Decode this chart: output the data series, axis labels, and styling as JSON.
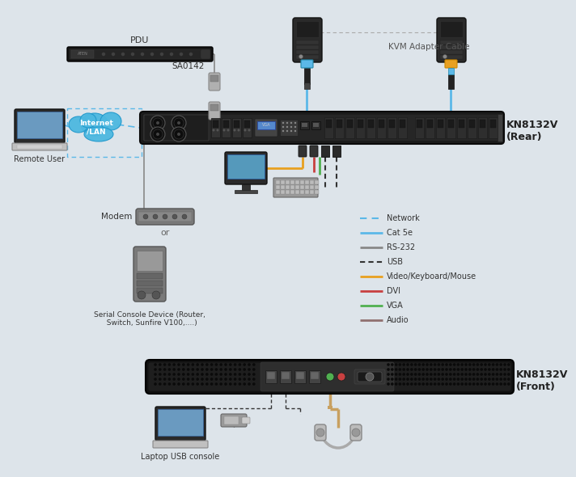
{
  "background_color": "#dde4ea",
  "legend_items": [
    {
      "label": "Network",
      "color": "#5bb8e8",
      "linestyle": "dashed",
      "dash": [
        4,
        3
      ],
      "lw": 1.5
    },
    {
      "label": "Cat 5e",
      "color": "#5bb8e8",
      "linestyle": "solid",
      "dash": null,
      "lw": 2.0
    },
    {
      "label": "RS-232",
      "color": "#888888",
      "linestyle": "solid",
      "dash": null,
      "lw": 2.0
    },
    {
      "label": "USB",
      "color": "#333333",
      "linestyle": "dashed",
      "dash": [
        3,
        2
      ],
      "lw": 1.5
    },
    {
      "label": "Video/Keyboard/Mouse",
      "color": "#e8a020",
      "linestyle": "solid",
      "dash": null,
      "lw": 2.0
    },
    {
      "label": "DVI",
      "color": "#c84040",
      "linestyle": "solid",
      "dash": null,
      "lw": 2.0
    },
    {
      "label": "VGA",
      "color": "#50b050",
      "linestyle": "solid",
      "dash": null,
      "lw": 2.0
    },
    {
      "label": "Audio",
      "color": "#907070",
      "linestyle": "solid",
      "dash": null,
      "lw": 2.0
    }
  ],
  "texts": {
    "pdu": "PDU",
    "sa0142": "SA0142",
    "kvm_adapter": "KVM Adapter Cable",
    "kn_rear": "KN8132V\n(Rear)",
    "kn_front": "KN8132V\n(Front)",
    "remote_user": "Remote User",
    "internet_lan": "Internet\n/LAN",
    "modem": "Modem",
    "or1": "or",
    "serial_dev": "Serial Console Device (Router,\n  Switch, Sunfire V100,....)",
    "laptop_usb": "Laptop USB console"
  },
  "colors": {
    "bg": "#dde4ea",
    "rack": "#1e1e1e",
    "rack2": "#282828",
    "rack3": "#383838",
    "port": "#333333",
    "port2": "#222222",
    "text": "#444444",
    "blue": "#5bb8e8",
    "orange": "#e8a020",
    "red": "#c84040",
    "green": "#50b050",
    "gray": "#888888",
    "lgray": "#aaaaaa",
    "cloud": "#4db8e0",
    "pdu": "#1a1a1a"
  }
}
